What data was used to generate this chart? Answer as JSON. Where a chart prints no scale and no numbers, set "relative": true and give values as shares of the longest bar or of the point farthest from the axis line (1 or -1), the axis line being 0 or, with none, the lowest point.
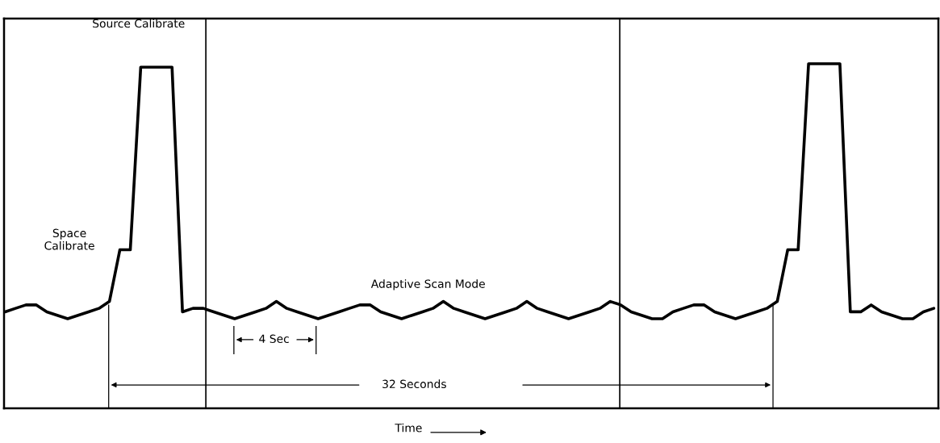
{
  "chart_data": {
    "type": "line",
    "relative": true,
    "xlabel": "Time",
    "marker": "none",
    "line_style": "solid",
    "categories": [
      null,
      null,
      null,
      null,
      null,
      null,
      null,
      null,
      null,
      null,
      null,
      null,
      null,
      null,
      null,
      null,
      null,
      null,
      null,
      null,
      null,
      null,
      null,
      null,
      null,
      null,
      null,
      null,
      null,
      null,
      null,
      null,
      null,
      null,
      null,
      null,
      null,
      null,
      null,
      null,
      null,
      null,
      null,
      null,
      null,
      null,
      null,
      null,
      null,
      null,
      null,
      null,
      null,
      null,
      null,
      null,
      null,
      null,
      null,
      null,
      null,
      null,
      null,
      null,
      null,
      null,
      null,
      null,
      null,
      null,
      null,
      null,
      null,
      null,
      null,
      null,
      null,
      null,
      null,
      null,
      null,
      null,
      null,
      null,
      null,
      null,
      null,
      null,
      null,
      null
    ],
    "series": [
      {
        "color": "#000000",
        "values": [
          0.28,
          0.29,
          0.3,
          0.3,
          0.28,
          0.27,
          0.26,
          0.27,
          0.28,
          0.29,
          0.31,
          0.46,
          0.46,
          0.99,
          0.99,
          0.99,
          0.99,
          0.28,
          0.29,
          0.29,
          0.28,
          0.27,
          0.26,
          0.27,
          0.28,
          0.29,
          0.31,
          0.29,
          0.28,
          0.27,
          0.26,
          0.27,
          0.28,
          0.29,
          0.3,
          0.3,
          0.28,
          0.27,
          0.26,
          0.27,
          0.28,
          0.29,
          0.31,
          0.29,
          0.28,
          0.27,
          0.26,
          0.27,
          0.28,
          0.29,
          0.31,
          0.29,
          0.28,
          0.27,
          0.26,
          0.27,
          0.28,
          0.29,
          0.31,
          0.3,
          0.28,
          0.27,
          0.26,
          0.26,
          0.28,
          0.29,
          0.3,
          0.3,
          0.28,
          0.27,
          0.26,
          0.27,
          0.28,
          0.29,
          0.31,
          0.46,
          0.46,
          1,
          1,
          1,
          1,
          0.28,
          0.28,
          0.3,
          0.28,
          0.27,
          0.26,
          0.26,
          0.28,
          0.29
        ]
      }
    ],
    "annotations": [
      "Source Calibrate",
      "Space\nCalibrate",
      "Adaptive Scan Mode",
      "4 Sec",
      "32 Seconds"
    ]
  }
}
